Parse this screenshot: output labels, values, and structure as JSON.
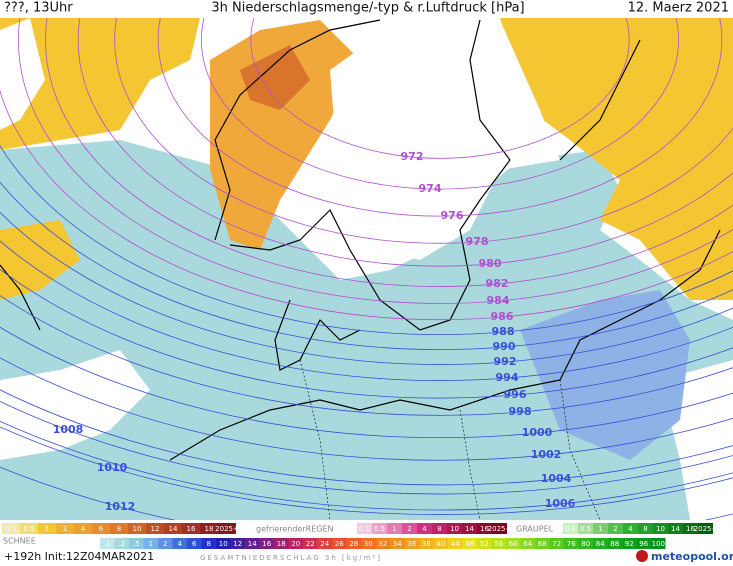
{
  "header": {
    "run": "???, 13Uhr",
    "title": "3h Niederschlagsmenge/-typ & r.Luftdruck [hPa]",
    "date": "12. Maerz 2021"
  },
  "isobar_labels": [
    "972",
    "974",
    "976",
    "978",
    "980",
    "982",
    "984",
    "986",
    "988",
    "990",
    "992",
    "994",
    "996",
    "998",
    "1000",
    "1002",
    "1004",
    "1006",
    "1008",
    "1010",
    "1012"
  ],
  "legend": {
    "snow": {
      "label": "SCHNEE",
      "values": [
        "0.1",
        "0.5",
        "1",
        "2",
        "4",
        "6",
        "8",
        "10",
        "12",
        "14",
        "16",
        "18",
        "2025+"
      ]
    },
    "freezing_rain": {
      "label": "gefrierenderREGEN",
      "values": [
        "0.1",
        "0.5",
        "1",
        "2",
        "4",
        "8",
        "10",
        "14",
        "16",
        "2025+"
      ]
    },
    "graupel": {
      "label": "GRAUPEL",
      "values": [
        "0.1",
        "0.5",
        "1",
        "2",
        "4",
        "8",
        "10",
        "14",
        "16",
        "2025+"
      ]
    },
    "total": {
      "label": "GESAMTNIEDERSCHLAG 3h [kg/m²]",
      "values": [
        ".1",
        ".2",
        ".5",
        "1",
        "2",
        "4",
        "6",
        "8",
        "10",
        "12",
        "14",
        "16",
        "18",
        "20",
        "22",
        "24",
        "26",
        "28",
        "30",
        "32",
        "34",
        "36",
        "38",
        "40",
        "44",
        "48",
        "52",
        "56",
        "60",
        "64",
        "68",
        "72",
        "76",
        "80",
        "84",
        "88",
        "92",
        "96",
        "100"
      ]
    }
  },
  "footer": {
    "init": "+192h Init:12Z04MAR2021",
    "brand": "meteopool.org"
  }
}
